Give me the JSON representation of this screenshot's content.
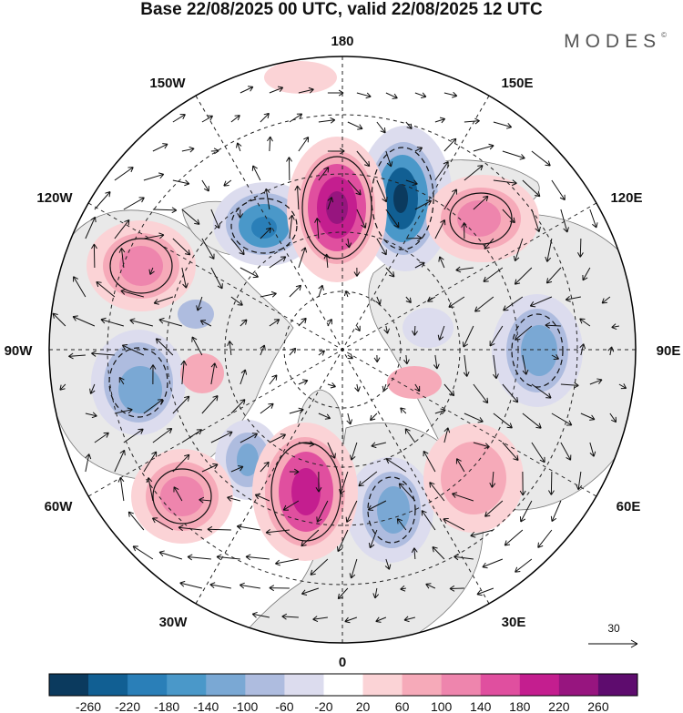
{
  "title": "Base 22/08/2025 00 UTC, valid 22/08/2025 12 UTC",
  "brand": {
    "name": "MODES",
    "mark": "©"
  },
  "longitude_labels": [
    "180",
    "150E",
    "120E",
    "90E",
    "60E",
    "30E",
    "0",
    "30W",
    "60W",
    "90W",
    "120W",
    "150W"
  ],
  "reference_vector": {
    "value": "30"
  },
  "colorbar": {
    "tick_labels": [
      "-260",
      "-220",
      "-180",
      "-140",
      "-100",
      "-60",
      "-20",
      "20",
      "60",
      "100",
      "140",
      "180",
      "220",
      "260"
    ],
    "colors": [
      "#0b3a5e",
      "#115f93",
      "#2a7fb8",
      "#4a98c9",
      "#7aa8d4",
      "#aebcdf",
      "#dcdcee",
      "#ffffff",
      "#fbd3d6",
      "#f6aab9",
      "#ee85ad",
      "#e04f9f",
      "#c41e8f",
      "#97157f",
      "#5e0c6e"
    ]
  },
  "colors": {
    "land": "#e9e9e9",
    "ocean": "#ffffff",
    "coast": "#777777",
    "grid": "#222222"
  }
}
